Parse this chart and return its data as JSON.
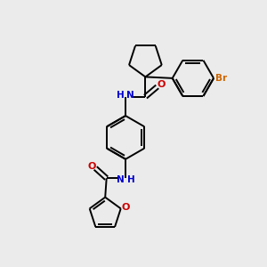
{
  "background_color": "#ebebeb",
  "bond_color": "#000000",
  "nitrogen_color": "#0000cc",
  "oxygen_color": "#cc0000",
  "bromine_color": "#cc6600",
  "figsize": [
    3.0,
    3.0
  ],
  "dpi": 100,
  "xlim": [
    0,
    10
  ],
  "ylim": [
    0,
    10
  ],
  "lw": 1.4
}
